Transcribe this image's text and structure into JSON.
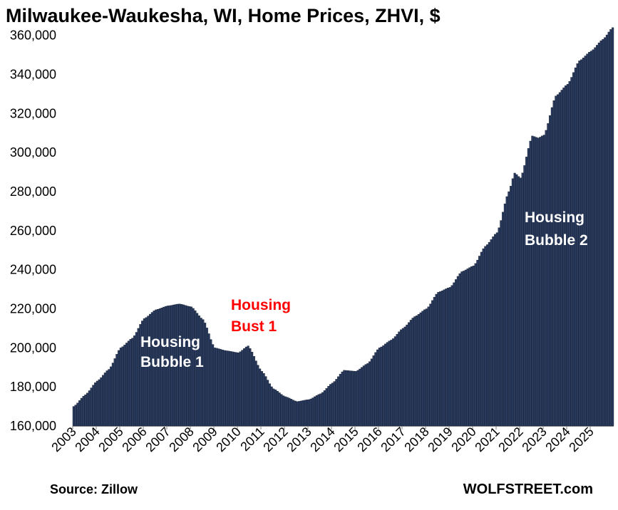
{
  "colors": {
    "bar_fill": "#2a3b5e",
    "bar_stroke": "#0c1424",
    "annotation_white": "#ffffff",
    "annotation_red": "#ff0000"
  },
  "chart_data": {
    "type": "bar",
    "title": "Milwaukee-Waukesha, WI, Home Prices, ZHVI, $",
    "xlabel": "",
    "ylabel": "",
    "ylim": [
      160000,
      365000
    ],
    "yticks": [
      160000,
      180000,
      200000,
      220000,
      240000,
      260000,
      280000,
      300000,
      320000,
      340000,
      360000
    ],
    "ytick_labels": [
      "160,000",
      "180,000",
      "200,000",
      "220,000",
      "240,000",
      "260,000",
      "280,000",
      "300,000",
      "320,000",
      "340,000",
      "360,000"
    ],
    "xtick_labels": [
      "2003",
      "2004",
      "2005",
      "2006",
      "2007",
      "2008",
      "2009",
      "2010",
      "2011",
      "2012",
      "2013",
      "2014",
      "2015",
      "2016",
      "2017",
      "2018",
      "2019",
      "2020",
      "2021",
      "2022",
      "2023",
      "2024",
      "2025"
    ],
    "frequency": "monthly",
    "start": "2003-01",
    "end": "2025-12",
    "knots": [
      [
        "2003-01",
        170000
      ],
      [
        "2003-07",
        176000
      ],
      [
        "2004-01",
        183000
      ],
      [
        "2004-07",
        189000
      ],
      [
        "2005-01",
        200000
      ],
      [
        "2005-07",
        205000
      ],
      [
        "2006-01",
        215000
      ],
      [
        "2006-07",
        219500
      ],
      [
        "2007-01",
        221500
      ],
      [
        "2007-07",
        222500
      ],
      [
        "2008-01",
        221000
      ],
      [
        "2008-07",
        214500
      ],
      [
        "2009-01",
        200000
      ],
      [
        "2009-07",
        198500
      ],
      [
        "2010-01",
        197500
      ],
      [
        "2010-06",
        201000
      ],
      [
        "2011-01",
        188000
      ],
      [
        "2011-07",
        179000
      ],
      [
        "2012-01",
        175000
      ],
      [
        "2012-07",
        172500
      ],
      [
        "2013-01",
        173500
      ],
      [
        "2013-07",
        176500
      ],
      [
        "2014-01",
        182000
      ],
      [
        "2014-07",
        188500
      ],
      [
        "2015-01",
        188000
      ],
      [
        "2015-07",
        192000
      ],
      [
        "2016-01",
        200000
      ],
      [
        "2016-07",
        204000
      ],
      [
        "2017-01",
        210000
      ],
      [
        "2017-07",
        216000
      ],
      [
        "2018-01",
        220000
      ],
      [
        "2018-07",
        228500
      ],
      [
        "2019-01",
        231000
      ],
      [
        "2019-07",
        239000
      ],
      [
        "2020-01",
        242000
      ],
      [
        "2020-07",
        252000
      ],
      [
        "2021-01",
        259000
      ],
      [
        "2021-07",
        280000
      ],
      [
        "2021-10",
        289500
      ],
      [
        "2022-01",
        287000
      ],
      [
        "2022-07",
        308500
      ],
      [
        "2022-10",
        307500
      ],
      [
        "2023-01",
        309000
      ],
      [
        "2023-07",
        329000
      ],
      [
        "2024-01",
        335000
      ],
      [
        "2024-07",
        347000
      ],
      [
        "2025-01",
        352000
      ],
      [
        "2025-07",
        358000
      ],
      [
        "2025-12",
        364000
      ]
    ],
    "annotations": [
      {
        "lines": [
          "Housing",
          "Bubble 1"
        ],
        "color": "white"
      },
      {
        "lines": [
          "Housing",
          "Bust 1"
        ],
        "color": "red"
      },
      {
        "lines": [
          "Housing",
          "Bubble 2"
        ],
        "color": "white"
      }
    ],
    "source": "Source: Zillow",
    "brand": "WOLFSTREET.com"
  }
}
